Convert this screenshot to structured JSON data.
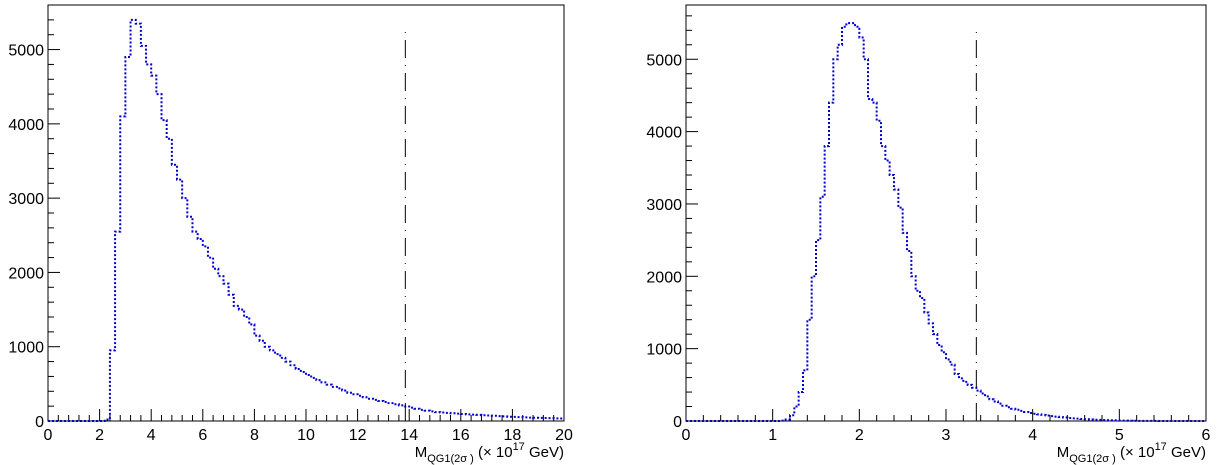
{
  "chart_data": [
    {
      "type": "histogram",
      "title": "",
      "xlabel": "M_QG1(2σ) (× 10^17 GeV)",
      "xlabel_parts": {
        "main": "M",
        "sub": "QG1(2σ )",
        "post": " (× 10",
        "sup": "17",
        "tail": " GeV)"
      },
      "ylabel": "",
      "xlim": [
        0,
        20
      ],
      "ylim": [
        0,
        5600
      ],
      "xticks": [
        0,
        2,
        4,
        6,
        8,
        10,
        12,
        14,
        16,
        18,
        20
      ],
      "xtick_labels": [
        "0",
        "2",
        "4",
        "6",
        "8",
        "10",
        "12",
        "14",
        "16",
        "18",
        "20"
      ],
      "yticks": [
        0,
        1000,
        2000,
        3000,
        4000,
        5000
      ],
      "ytick_labels": [
        "0",
        "1000",
        "2000",
        "3000",
        "4000",
        "5000"
      ],
      "bin_width": 0.2,
      "bin_start": 0,
      "series": [
        {
          "color": "#0000cc",
          "style": "dotted-step",
          "values": [
            0,
            0,
            0,
            0,
            0,
            0,
            0,
            0,
            0,
            0,
            0,
            20,
            950,
            2550,
            4100,
            4900,
            5400,
            5350,
            5050,
            4800,
            4650,
            4400,
            4050,
            3800,
            3450,
            3250,
            3000,
            2750,
            2550,
            2450,
            2350,
            2200,
            2050,
            1950,
            1850,
            1700,
            1550,
            1500,
            1400,
            1300,
            1150,
            1080,
            1000,
            950,
            900,
            850,
            800,
            750,
            700,
            660,
            620,
            580,
            550,
            520,
            490,
            460,
            440,
            410,
            380,
            360,
            340,
            320,
            300,
            285,
            270,
            255,
            240,
            225,
            210,
            195,
            180,
            165,
            150,
            140,
            130,
            120,
            115,
            110,
            105,
            100,
            95,
            90,
            86,
            82,
            78,
            74,
            70,
            66,
            62,
            58,
            55,
            52,
            49,
            46,
            44,
            42,
            40,
            38,
            36,
            34
          ]
        }
      ],
      "reference_line": {
        "x": 13.85,
        "style": "dash-dot"
      },
      "grid": false,
      "legend": "none"
    },
    {
      "type": "histogram",
      "title": "",
      "xlabel": "M_QG1(2σ) (× 10^17 GeV)",
      "xlabel_parts": {
        "main": "M",
        "sub": "QG1(2σ )",
        "post": " (× 10",
        "sup": "17",
        "tail": " GeV)"
      },
      "ylabel": "",
      "xlim": [
        0,
        6
      ],
      "ylim": [
        0,
        5750
      ],
      "xticks": [
        0,
        1,
        2,
        3,
        4,
        5,
        6
      ],
      "xtick_labels": [
        "0",
        "1",
        "2",
        "3",
        "4",
        "5",
        "6"
      ],
      "yticks": [
        0,
        1000,
        2000,
        3000,
        4000,
        5000
      ],
      "ytick_labels": [
        "0",
        "1000",
        "2000",
        "3000",
        "4000",
        "5000"
      ],
      "bin_width": 0.05,
      "bin_start": 0,
      "series": [
        {
          "color": "#0000cc",
          "style": "dotted-step",
          "values": [
            0,
            0,
            0,
            0,
            0,
            0,
            0,
            0,
            0,
            0,
            0,
            0,
            0,
            0,
            0,
            0,
            0,
            0,
            0,
            0,
            0,
            0,
            5,
            20,
            80,
            200,
            400,
            700,
            1400,
            2000,
            2500,
            3100,
            3800,
            4400,
            5000,
            5200,
            5450,
            5500,
            5500,
            5450,
            5300,
            5000,
            4450,
            4400,
            4150,
            3800,
            3600,
            3400,
            3200,
            2950,
            2600,
            2350,
            2000,
            1800,
            1700,
            1500,
            1350,
            1200,
            1050,
            950,
            850,
            780,
            650,
            590,
            540,
            500,
            460,
            420,
            380,
            340,
            300,
            270,
            240,
            210,
            190,
            170,
            155,
            140,
            125,
            110,
            100,
            92,
            84,
            76,
            68,
            60,
            54,
            48,
            42,
            36,
            32,
            28,
            24,
            20,
            18,
            16,
            14,
            12,
            10,
            8,
            6,
            5,
            4,
            3,
            2,
            2,
            1,
            1,
            1,
            0,
            0,
            0,
            0,
            0,
            0,
            0,
            0,
            0,
            0,
            0,
            0,
            0
          ]
        }
      ],
      "reference_line": {
        "x": 3.35,
        "style": "dash-dot"
      },
      "grid": false,
      "legend": "none"
    }
  ]
}
